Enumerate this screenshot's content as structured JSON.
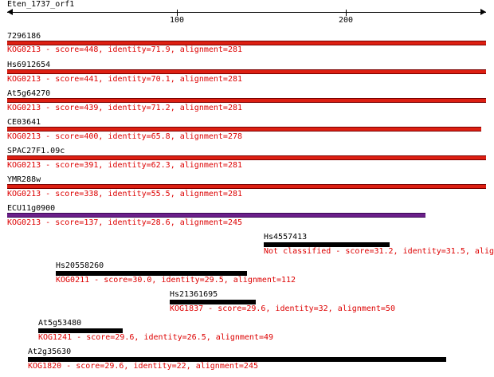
{
  "query": {
    "name": "Eten_1737_orf1"
  },
  "axis": {
    "ticks": [
      "100",
      "200"
    ]
  },
  "colors": {
    "strong_bar": "#dd1f12",
    "weak_bar": "#6b1f8a",
    "unclassified_bar": "#000000",
    "desc_text": "#dd0000"
  },
  "hits": [
    {
      "name": "7296186",
      "description": "KOG0213 - score=448, identity=71.9, alignment=281"
    },
    {
      "name": "Hs6912654",
      "description": "KOG0213 - score=441, identity=70.1, alignment=281"
    },
    {
      "name": "At5g64270",
      "description": "KOG0213 - score=439, identity=71.2, alignment=281"
    },
    {
      "name": "CE03641",
      "description": "KOG0213 - score=400, identity=65.8, alignment=278"
    },
    {
      "name": "SPAC27F1.09c",
      "description": "KOG0213 - score=391, identity=62.3, alignment=281"
    },
    {
      "name": "YMR288w",
      "description": "KOG0213 - score=338, identity=55.5, alignment=281"
    },
    {
      "name": "ECU11g0900",
      "description": "KOG0213 - score=137, identity=28.6, alignment=245"
    },
    {
      "name": "Hs4557413",
      "description": "Not classified - score=31.2, identity=31.5, alig"
    },
    {
      "name": "Hs20558260",
      "description": "KOG0211 - score=30.0, identity=29.5, alignment=112"
    },
    {
      "name": "Hs21361695",
      "description": "KOG1837 - score=29.6, identity=32, alignment=50"
    },
    {
      "name": "At5g53480",
      "description": "KOG1241 - score=29.6, identity=26.5, alignment=49"
    },
    {
      "name": "At2g35630",
      "description": "KOG1820 - score=29.6, identity=22, alignment=245"
    }
  ]
}
